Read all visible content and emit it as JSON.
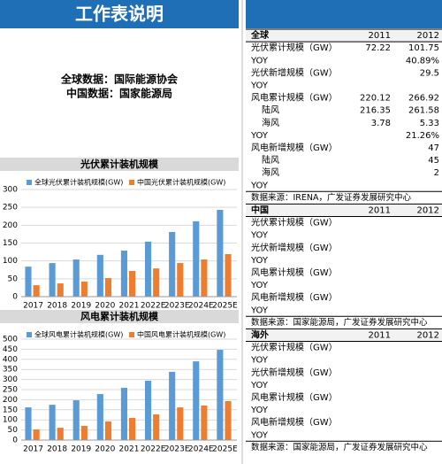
{
  "header": {
    "title": "工作表说明"
  },
  "notes": [
    "全球数据：国际能源协会",
    "中国数据：国家能源局"
  ],
  "chart_data": [
    {
      "type": "bar",
      "title": "光伏累计装机规模",
      "categories": [
        "2017",
        "2018",
        "2019",
        "2020",
        "2021",
        "2022E",
        "2023E",
        "2024E",
        "2025E"
      ],
      "series": [
        {
          "name": "全球光伏累计装机规模(GW)",
          "color": "#5b9bd5",
          "values": [
            84,
            94,
            104,
            117,
            129,
            154,
            181,
            211,
            243
          ]
        },
        {
          "name": "中国光伏累计装机规模(GW)",
          "color": "#ed7d31",
          "values": [
            32,
            37,
            42,
            52,
            72,
            79,
            94,
            104,
            119
          ]
        }
      ],
      "ylim": [
        0,
        300
      ],
      "yticks": [
        0,
        50,
        100,
        150,
        200,
        250,
        300
      ],
      "grid": true
    },
    {
      "type": "bar",
      "title": "风电累计装机规模",
      "categories": [
        "2017",
        "2018",
        "2019",
        "2020",
        "2021",
        "2022E",
        "2023E",
        "2024E",
        "2025E"
      ],
      "series": [
        {
          "name": "全球风电累计装机规模(GW)",
          "color": "#5b9bd5",
          "values": [
            162,
            175,
            197,
            228,
            259,
            294,
            338,
            390,
            447
          ]
        },
        {
          "name": "中国风电累计装机规模(GW)",
          "color": "#ed7d31",
          "values": [
            53,
            61,
            70,
            92,
            110,
            127,
            162,
            171,
            193
          ]
        }
      ],
      "ylim": [
        0,
        500
      ],
      "yticks": [
        0,
        50,
        100,
        150,
        200,
        250,
        300,
        350,
        400,
        450,
        500
      ],
      "grid": true
    }
  ],
  "table": {
    "sections": [
      {
        "header": [
          "全球",
          "2011",
          "2012"
        ],
        "rows": [
          [
            "光伏累计规模（GW）",
            "72.22",
            "101.75"
          ],
          [
            "YOY",
            null,
            "40.89%"
          ],
          [
            "光伏新增规模（GW）",
            null,
            "29.5"
          ],
          [
            "YOY",
            null,
            null
          ],
          [
            "风电累计规模（GW）",
            "220.12",
            "266.92"
          ],
          [
            "陆风",
            "216.35",
            "261.58"
          ],
          [
            "海风",
            "3.78",
            "5.33"
          ],
          [
            "YOY",
            null,
            "21.26%"
          ],
          [
            "风电新增规模（GW）",
            null,
            "47"
          ],
          [
            "陆风",
            null,
            "45"
          ],
          [
            "海风",
            null,
            "2"
          ],
          [
            "YOY",
            null,
            null
          ]
        ],
        "source": "数据来源：IRENA，广发证券发展研究中心"
      },
      {
        "header": [
          "中国",
          "2011",
          "2012"
        ],
        "rows": [
          [
            "光伏累计规模（GW）",
            null,
            null
          ],
          [
            "YOY",
            null,
            null
          ],
          [
            "光伏新增规模（GW）",
            null,
            null
          ],
          [
            "YOY",
            null,
            null
          ],
          [
            "风电累计规模（GW）",
            null,
            null
          ],
          [
            "YOY",
            null,
            null
          ],
          [
            "风电新增规模（GW）",
            null,
            null
          ],
          [
            "YOY",
            null,
            null
          ]
        ],
        "source": "数据来源：国家能源局，广发证券发展研究中心"
      },
      {
        "header": [
          "海外",
          "2011",
          "2012"
        ],
        "rows": [
          [
            "光伏累计规模（GW）",
            null,
            null
          ],
          [
            "YOY",
            null,
            null
          ],
          [
            "光伏新增规模（GW）",
            null,
            null
          ],
          [
            "YOY",
            null,
            null
          ],
          [
            "风电累计规模（GW）",
            null,
            null
          ],
          [
            "YOY",
            null,
            null
          ],
          [
            "风电新增规模（GW）",
            null,
            null
          ],
          [
            "YOY",
            null,
            null
          ]
        ],
        "source": "数据来源：国家能源局，广发证券发展研究中心"
      }
    ]
  }
}
